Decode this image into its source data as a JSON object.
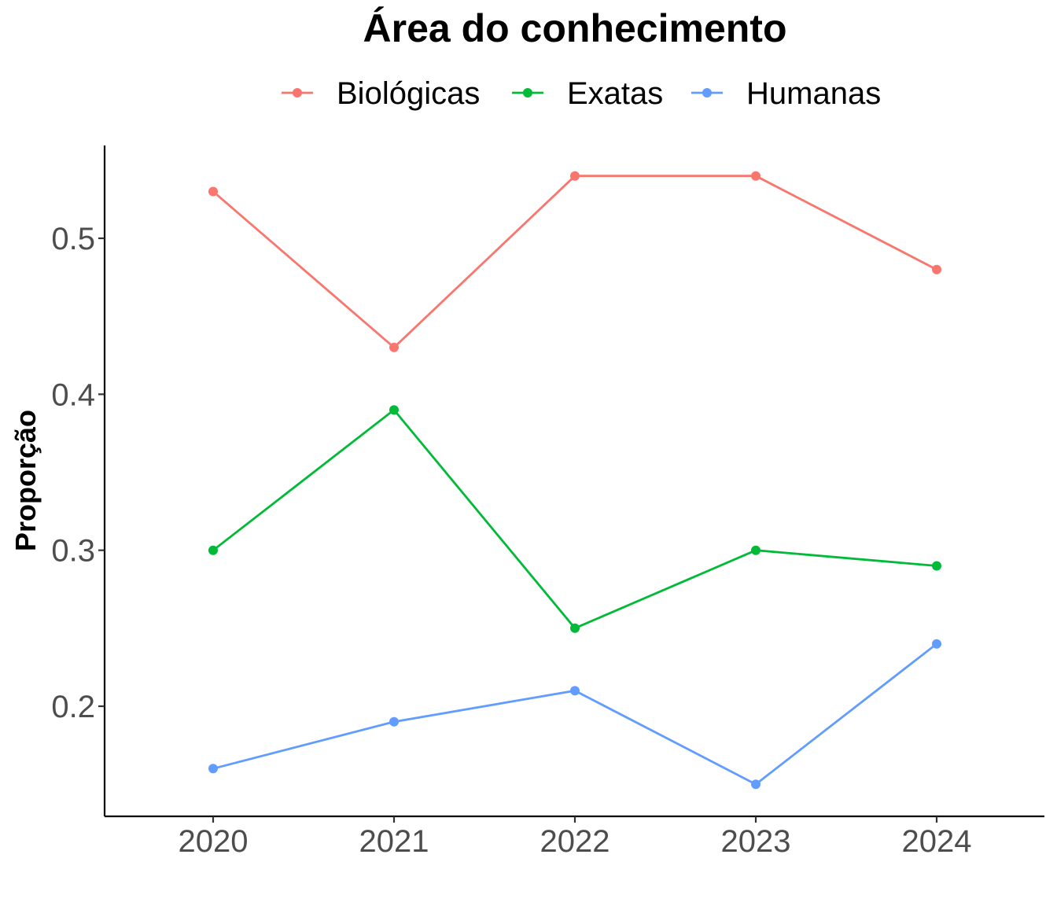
{
  "chart_data": {
    "type": "line",
    "legend_title": "Área do conhecimento",
    "legend_position": "top",
    "xlabel": "",
    "ylabel": "Proporção",
    "grid": false,
    "ylim": [
      0.13,
      0.56
    ],
    "categories": [
      "2020",
      "2021",
      "2022",
      "2023",
      "2024"
    ],
    "yticks": [
      "0.2",
      "0.3",
      "0.4",
      "0.5"
    ],
    "series": [
      {
        "name": "Biológicas",
        "color": "#f8766d",
        "values": [
          0.53,
          0.43,
          0.54,
          0.54,
          0.48
        ]
      },
      {
        "name": "Exatas",
        "color": "#00ba38",
        "values": [
          0.3,
          0.39,
          0.25,
          0.3,
          0.29
        ]
      },
      {
        "name": "Humanas",
        "color": "#619cff",
        "values": [
          0.16,
          0.19,
          0.21,
          0.15,
          0.24
        ]
      }
    ]
  }
}
